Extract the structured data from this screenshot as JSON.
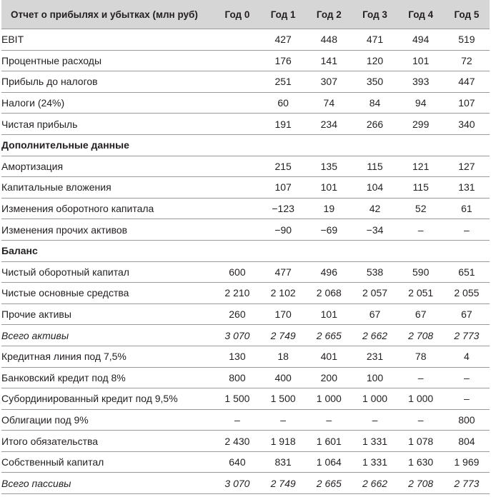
{
  "table": {
    "header_label": "Отчет о прибылях и убытках (млн руб)",
    "years": [
      "Год 0",
      "Год 1",
      "Год 2",
      "Год 3",
      "Год 4",
      "Год 5"
    ],
    "rows": [
      {
        "label": "EBIT",
        "values": [
          "",
          "427",
          "448",
          "471",
          "494",
          "519"
        ]
      },
      {
        "label": "Процентные расходы",
        "values": [
          "",
          "176",
          "141",
          "120",
          "101",
          "72"
        ]
      },
      {
        "label": "Прибыль до налогов",
        "values": [
          "",
          "251",
          "307",
          "350",
          "393",
          "447"
        ]
      },
      {
        "label": "Налоги (24%)",
        "values": [
          "",
          "60",
          "74",
          "84",
          "94",
          "107"
        ]
      },
      {
        "label": "Чистая прибыль",
        "values": [
          "",
          "191",
          "234",
          "266",
          "299",
          "340"
        ]
      },
      {
        "label": "Дополнительные данные",
        "section": true,
        "values": [
          "",
          "",
          "",
          "",
          "",
          ""
        ]
      },
      {
        "label": "Амортизация",
        "values": [
          "",
          "215",
          "135",
          "115",
          "121",
          "127"
        ]
      },
      {
        "label": "Капитальные вложения",
        "values": [
          "",
          "107",
          "101",
          "104",
          "115",
          "131"
        ]
      },
      {
        "label": "Изменения оборотного капитала",
        "values": [
          "",
          "−123",
          "19",
          "42",
          "52",
          "61"
        ]
      },
      {
        "label": "Изменения прочих активов",
        "values": [
          "",
          "−90",
          "−69",
          "−34",
          "–",
          "–"
        ]
      },
      {
        "label": "Баланс",
        "section": true,
        "values": [
          "",
          "",
          "",
          "",
          "",
          ""
        ]
      },
      {
        "label": "Чистый оборотный капитал",
        "values": [
          "600",
          "477",
          "496",
          "538",
          "590",
          "651"
        ]
      },
      {
        "label": "Чистые основные средства",
        "values": [
          "2 210",
          "2 102",
          "2 068",
          "2 057",
          "2 051",
          "2 055"
        ]
      },
      {
        "label": "Прочие активы",
        "values": [
          "260",
          "170",
          "101",
          "67",
          "67",
          "67"
        ]
      },
      {
        "label": "Всего активы",
        "italic": true,
        "values": [
          "3 070",
          "2 749",
          "2 665",
          "2 662",
          "2 708",
          "2 773"
        ]
      },
      {
        "label": "Кредитная линия под 7,5%",
        "values": [
          "130",
          "18",
          "401",
          "231",
          "78",
          "4"
        ]
      },
      {
        "label": "Банковский кредит под 8%",
        "values": [
          "800",
          "400",
          "200",
          "100",
          "–",
          "–"
        ]
      },
      {
        "label": "Субординированный кредит под 9,5%",
        "values": [
          "1 500",
          "1 500",
          "1 000",
          "1 000",
          "1 000",
          "–"
        ]
      },
      {
        "label": "Облигации под 9%",
        "values": [
          "–",
          "–",
          "–",
          "–",
          "–",
          "800"
        ]
      },
      {
        "label": "Итого обязательства",
        "values": [
          "2 430",
          "1 918",
          "1 601",
          "1 331",
          "1 078",
          "804"
        ]
      },
      {
        "label": "Собственный капитал",
        "values": [
          "640",
          "831",
          "1 064",
          "1 331",
          "1 630",
          "1 969"
        ]
      },
      {
        "label": "Всего пассивы",
        "italic": true,
        "values": [
          "3 070",
          "2 749",
          "2 665",
          "2 662",
          "2 708",
          "2 773"
        ]
      }
    ]
  }
}
